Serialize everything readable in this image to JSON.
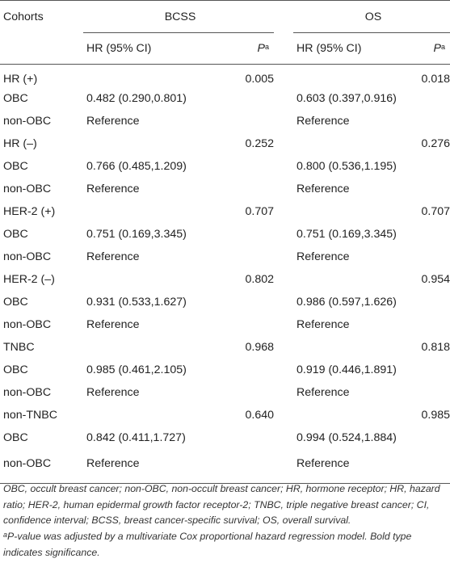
{
  "header": {
    "cohorts": "Cohorts",
    "group_bcss": "BCSS",
    "group_os": "OS",
    "hr_ci": "HR (95% CI)",
    "p_label": "P",
    "p_sup": "a"
  },
  "rows": [
    {
      "label": "HR (+)",
      "bcss_hr": "",
      "bcss_p": "0.005",
      "os_hr": "",
      "os_p": "0.018"
    },
    {
      "label": "OBC",
      "bcss_hr": "0.482 (0.290,0.801)",
      "bcss_p": "",
      "os_hr": "0.603 (0.397,0.916)",
      "os_p": ""
    },
    {
      "label": "non-OBC",
      "bcss_hr": "Reference",
      "bcss_p": "",
      "os_hr": "Reference",
      "os_p": ""
    },
    {
      "label": "HR (–)",
      "bcss_hr": "",
      "bcss_p": "0.252",
      "os_hr": "",
      "os_p": "0.276"
    },
    {
      "label": "OBC",
      "bcss_hr": "0.766 (0.485,1.209)",
      "bcss_p": "",
      "os_hr": "0.800 (0.536,1.195)",
      "os_p": ""
    },
    {
      "label": "non-OBC",
      "bcss_hr": "Reference",
      "bcss_p": "",
      "os_hr": "Reference",
      "os_p": ""
    },
    {
      "label": "HER-2 (+)",
      "bcss_hr": "",
      "bcss_p": "0.707",
      "os_hr": "",
      "os_p": "0.707"
    },
    {
      "label": "OBC",
      "bcss_hr": "0.751 (0.169,3.345)",
      "bcss_p": "",
      "os_hr": "0.751 (0.169,3.345)",
      "os_p": ""
    },
    {
      "label": "non-OBC",
      "bcss_hr": "Reference",
      "bcss_p": "",
      "os_hr": "Reference",
      "os_p": ""
    },
    {
      "label": "HER-2 (–)",
      "bcss_hr": "",
      "bcss_p": "0.802",
      "os_hr": "",
      "os_p": "0.954"
    },
    {
      "label": "OBC",
      "bcss_hr": "0.931 (0.533,1.627)",
      "bcss_p": "",
      "os_hr": "0.986 (0.597,1.626)",
      "os_p": ""
    },
    {
      "label": "non-OBC",
      "bcss_hr": "Reference",
      "bcss_p": "",
      "os_hr": "Reference",
      "os_p": ""
    },
    {
      "label": "TNBC",
      "bcss_hr": "",
      "bcss_p": "0.968",
      "os_hr": "",
      "os_p": "0.818"
    },
    {
      "label": "OBC",
      "bcss_hr": "0.985 (0.461,2.105)",
      "bcss_p": "",
      "os_hr": "0.919 (0.446,1.891)",
      "os_p": ""
    },
    {
      "label": "non-OBC",
      "bcss_hr": "Reference",
      "bcss_p": "",
      "os_hr": "Reference",
      "os_p": ""
    },
    {
      "label": "non-TNBC",
      "bcss_hr": "",
      "bcss_p": "0.640",
      "os_hr": "",
      "os_p": "0.985"
    },
    {
      "label": "OBC",
      "bcss_hr": "0.842 (0.411,1.727)",
      "bcss_p": "",
      "os_hr": "0.994 (0.524,1.884)",
      "os_p": ""
    },
    {
      "label": "non-OBC",
      "bcss_hr": "Reference",
      "bcss_p": "",
      "os_hr": "Reference",
      "os_p": ""
    }
  ],
  "bold_p_rows": [
    0
  ],
  "footnote": {
    "abbreviations": "OBC, occult breast cancer; non-OBC, non-occult breast cancer; HR, hormone receptor; HR, hazard ratio; HER-2, human epidermal growth factor receptor-2; TNBC, triple negative breast cancer; CI, confidence interval; BCSS, breast cancer-specific survival; OS, overall survival.",
    "adjust_sup": "a",
    "adjust_text": "P-value was adjusted by a multivariate Cox proportional hazard regression model. Bold type indicates significance."
  }
}
